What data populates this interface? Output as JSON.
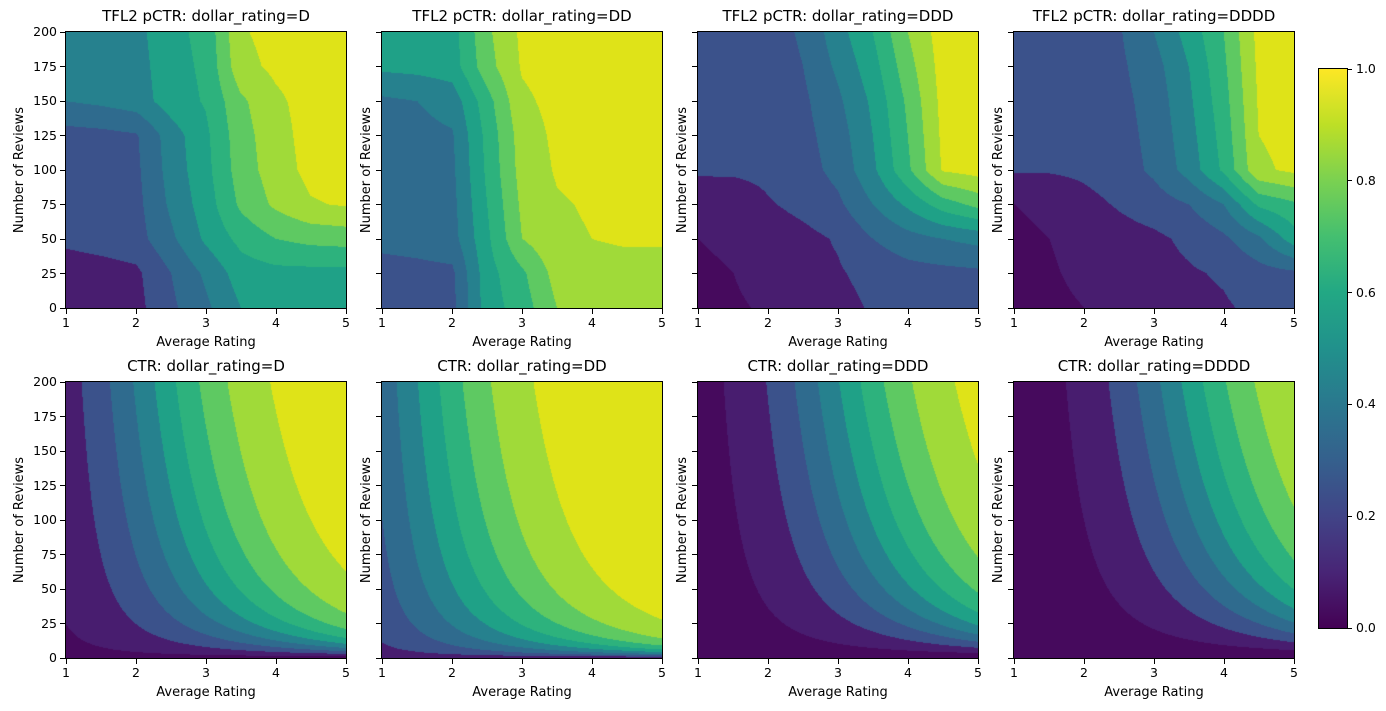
{
  "figure": {
    "background": "#ffffff",
    "description": "2x4 grid of filled contour plots comparing TFL2 model predicted CTR vs true CTR by dollar_rating, with shared viridis colorbar"
  },
  "axis": {
    "xlabel": "Average Rating",
    "ylabel": "Number of Reviews",
    "x_range": [
      1,
      5
    ],
    "y_range": [
      0,
      200
    ],
    "xtick_values": [
      1,
      2,
      3,
      4,
      5
    ],
    "xtick_labels": [
      "1",
      "2",
      "3",
      "4",
      "5"
    ],
    "ytick_values": [
      0,
      25,
      50,
      75,
      100,
      125,
      150,
      175,
      200
    ],
    "ytick_labels": [
      "0",
      "25",
      "50",
      "75",
      "100",
      "125",
      "150",
      "175",
      "200"
    ]
  },
  "colormap": {
    "name": "viridis",
    "levels": [
      0,
      0.1,
      0.2,
      0.3,
      0.4,
      0.5,
      0.6,
      0.7,
      0.8,
      0.9,
      1.0
    ],
    "band_colors": [
      "#460a5d",
      "#481d6f",
      "#3b528b",
      "#2f6b8e",
      "#26818e",
      "#1fa187",
      "#2db27d",
      "#5ec962",
      "#a0da39",
      "#dfe318"
    ]
  },
  "colorbar": {
    "min": 0.0,
    "max": 1.0,
    "tick_values": [
      0.0,
      0.2,
      0.4,
      0.6,
      0.8,
      1.0
    ],
    "tick_labels": [
      "0.0",
      "0.2",
      "0.4",
      "0.6",
      "0.8",
      "1.0"
    ],
    "gradient_stops": [
      "#440154",
      "#482576",
      "#414487",
      "#35608d",
      "#2a788e",
      "#21918c",
      "#22a884",
      "#44bf70",
      "#7ad151",
      "#bddf26",
      "#fde725"
    ]
  },
  "chart_data": {
    "type": "heatmap",
    "subtype": "filled_contour",
    "x": [
      1,
      1.5,
      2,
      2.5,
      3,
      3.5,
      4,
      4.5,
      5
    ],
    "y": [
      0,
      25,
      50,
      75,
      100,
      125,
      150,
      175,
      200
    ],
    "plots": [
      {
        "id": "tfl2-pctr-d",
        "title": "TFL2 pCTR: dollar_rating=D",
        "row": 0,
        "col": 0,
        "kind": "grid",
        "values": [
          [
            0.14,
            0.15,
            0.17,
            0.28,
            0.38,
            0.5,
            0.52,
            0.53,
            0.53
          ],
          [
            0.15,
            0.16,
            0.18,
            0.3,
            0.42,
            0.55,
            0.57,
            0.57,
            0.57
          ],
          [
            0.22,
            0.24,
            0.26,
            0.38,
            0.52,
            0.63,
            0.7,
            0.73,
            0.74
          ],
          [
            0.24,
            0.25,
            0.27,
            0.42,
            0.55,
            0.72,
            0.82,
            0.89,
            0.91
          ],
          [
            0.25,
            0.26,
            0.28,
            0.44,
            0.57,
            0.75,
            0.85,
            0.93,
            0.95
          ],
          [
            0.26,
            0.27,
            0.29,
            0.45,
            0.58,
            0.76,
            0.86,
            0.94,
            0.95
          ],
          [
            0.4,
            0.42,
            0.45,
            0.55,
            0.61,
            0.78,
            0.88,
            0.94,
            0.96
          ],
          [
            0.44,
            0.45,
            0.46,
            0.56,
            0.62,
            0.87,
            0.92,
            0.95,
            0.97
          ],
          [
            0.45,
            0.46,
            0.47,
            0.57,
            0.63,
            0.89,
            0.93,
            0.96,
            0.98
          ]
        ]
      },
      {
        "id": "tfl2-pctr-dd",
        "title": "TFL2 pCTR: dollar_rating=DD",
        "row": 0,
        "col": 1,
        "kind": "grid",
        "values": [
          [
            0.25,
            0.26,
            0.27,
            0.55,
            0.65,
            0.8,
            0.85,
            0.86,
            0.86
          ],
          [
            0.26,
            0.27,
            0.28,
            0.56,
            0.68,
            0.84,
            0.87,
            0.87,
            0.87
          ],
          [
            0.33,
            0.34,
            0.36,
            0.58,
            0.8,
            0.88,
            0.9,
            0.91,
            0.91
          ],
          [
            0.34,
            0.35,
            0.37,
            0.6,
            0.82,
            0.89,
            0.91,
            0.93,
            0.94
          ],
          [
            0.35,
            0.36,
            0.38,
            0.62,
            0.84,
            0.91,
            0.93,
            0.94,
            0.95
          ],
          [
            0.36,
            0.37,
            0.39,
            0.63,
            0.85,
            0.92,
            0.94,
            0.95,
            0.96
          ],
          [
            0.38,
            0.4,
            0.44,
            0.66,
            0.88,
            0.93,
            0.95,
            0.96,
            0.97
          ],
          [
            0.52,
            0.53,
            0.55,
            0.76,
            0.91,
            0.94,
            0.96,
            0.97,
            0.98
          ],
          [
            0.53,
            0.54,
            0.56,
            0.78,
            0.92,
            0.95,
            0.97,
            0.98,
            0.98
          ]
        ]
      },
      {
        "id": "tfl2-pctr-ddd",
        "title": "TFL2 pCTR: dollar_rating=DDD",
        "row": 0,
        "col": 2,
        "kind": "grid",
        "values": [
          [
            0.08,
            0.09,
            0.11,
            0.14,
            0.17,
            0.21,
            0.23,
            0.24,
            0.25
          ],
          [
            0.09,
            0.1,
            0.13,
            0.16,
            0.19,
            0.23,
            0.26,
            0.27,
            0.28
          ],
          [
            0.1,
            0.11,
            0.14,
            0.17,
            0.21,
            0.3,
            0.36,
            0.4,
            0.43
          ],
          [
            0.11,
            0.12,
            0.19,
            0.23,
            0.28,
            0.4,
            0.52,
            0.65,
            0.73
          ],
          [
            0.22,
            0.22,
            0.23,
            0.26,
            0.33,
            0.48,
            0.68,
            0.91,
            0.94
          ],
          [
            0.23,
            0.23,
            0.24,
            0.27,
            0.35,
            0.5,
            0.7,
            0.92,
            0.95
          ],
          [
            0.23,
            0.24,
            0.25,
            0.28,
            0.38,
            0.52,
            0.72,
            0.93,
            0.95
          ],
          [
            0.24,
            0.25,
            0.26,
            0.3,
            0.42,
            0.56,
            0.76,
            0.94,
            0.96
          ],
          [
            0.25,
            0.26,
            0.27,
            0.31,
            0.46,
            0.6,
            0.8,
            0.95,
            0.97
          ]
        ]
      },
      {
        "id": "tfl2-pctr-dddd",
        "title": "TFL2 pCTR: dollar_rating=DDDD",
        "row": 0,
        "col": 3,
        "kind": "grid",
        "values": [
          [
            0.07,
            0.08,
            0.1,
            0.12,
            0.15,
            0.18,
            0.19,
            0.22,
            0.24
          ],
          [
            0.08,
            0.09,
            0.12,
            0.14,
            0.17,
            0.19,
            0.21,
            0.26,
            0.28
          ],
          [
            0.09,
            0.1,
            0.13,
            0.16,
            0.18,
            0.22,
            0.28,
            0.38,
            0.55
          ],
          [
            0.1,
            0.11,
            0.17,
            0.21,
            0.25,
            0.3,
            0.4,
            0.62,
            0.68
          ],
          [
            0.21,
            0.21,
            0.22,
            0.25,
            0.32,
            0.44,
            0.62,
            0.88,
            0.92
          ],
          [
            0.22,
            0.22,
            0.23,
            0.26,
            0.33,
            0.46,
            0.64,
            0.9,
            0.93
          ],
          [
            0.22,
            0.23,
            0.24,
            0.27,
            0.34,
            0.48,
            0.66,
            0.91,
            0.94
          ],
          [
            0.23,
            0.24,
            0.25,
            0.28,
            0.36,
            0.5,
            0.68,
            0.92,
            0.95
          ],
          [
            0.24,
            0.25,
            0.26,
            0.29,
            0.4,
            0.54,
            0.7,
            0.93,
            0.96
          ]
        ]
      },
      {
        "id": "ctr-d",
        "title": "CTR: dollar_rating=D",
        "row": 1,
        "col": 0,
        "kind": "formula",
        "formula": "1 / (1 + exp(baseline - avg_rating * log1p(num_reviews) / 4))",
        "baseline": 3
      },
      {
        "id": "ctr-dd",
        "title": "CTR: dollar_rating=DD",
        "row": 1,
        "col": 1,
        "kind": "formula",
        "formula": "1 / (1 + exp(baseline - avg_rating * log1p(num_reviews) / 4))",
        "baseline": 2
      },
      {
        "id": "ctr-ddd",
        "title": "CTR: dollar_rating=DDD",
        "row": 1,
        "col": 2,
        "kind": "formula",
        "formula": "1 / (1 + exp(baseline - avg_rating * log1p(num_reviews) / 4))",
        "baseline": 4
      },
      {
        "id": "ctr-dddd",
        "title": "CTR: dollar_rating=DDDD",
        "row": 1,
        "col": 3,
        "kind": "formula",
        "formula": "1 / (1 + exp(baseline - avg_rating * log1p(num_reviews) / 4))",
        "baseline": 4.5
      }
    ]
  }
}
